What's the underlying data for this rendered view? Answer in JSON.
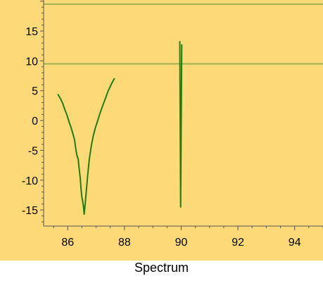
{
  "caption": "Spectrum",
  "colors": {
    "background": "#FDD977",
    "line": "#1E7F12",
    "reference": "#9FB24F",
    "axis": "#555555"
  },
  "chart_data": {
    "type": "line",
    "title": "",
    "xlabel": "",
    "ylabel": "",
    "xlim": [
      85.15,
      95.0
    ],
    "ylim": [
      -17.7,
      20.2
    ],
    "xticks": [
      86,
      88,
      90,
      92,
      94
    ],
    "yticks": [
      -15,
      -10,
      -5,
      0,
      5,
      10,
      15
    ],
    "grid": false,
    "reference_lines_y": [
      19.5,
      9.5
    ],
    "series": [
      {
        "points": [
          [
            85.65,
            4.4
          ],
          [
            85.75,
            3.6
          ],
          [
            85.82,
            2.9
          ],
          [
            85.9,
            1.8
          ],
          [
            85.98,
            0.8
          ],
          [
            86.05,
            -0.3
          ],
          [
            86.12,
            -1.2
          ],
          [
            86.18,
            -2.2
          ],
          [
            86.24,
            -3.2
          ],
          [
            86.28,
            -4.6
          ],
          [
            86.32,
            -5.8
          ],
          [
            86.37,
            -6.5
          ],
          [
            86.4,
            -8.0
          ],
          [
            86.44,
            -9.6
          ],
          [
            86.47,
            -11.5
          ],
          [
            86.5,
            -12.9
          ],
          [
            86.53,
            -13.6
          ],
          [
            86.56,
            -14.6
          ],
          [
            86.58,
            -15.7
          ],
          [
            86.62,
            -13.8
          ],
          [
            86.66,
            -11.5
          ],
          [
            86.7,
            -9.3
          ],
          [
            86.76,
            -6.5
          ],
          [
            86.83,
            -4.3
          ],
          [
            86.9,
            -2.6
          ],
          [
            86.97,
            -1.3
          ],
          [
            87.05,
            -0.1
          ],
          [
            87.13,
            1.1
          ],
          [
            87.22,
            2.3
          ],
          [
            87.32,
            3.6
          ],
          [
            87.42,
            4.9
          ],
          [
            87.55,
            6.2
          ],
          [
            87.65,
            7.1
          ]
        ]
      },
      {
        "points": [
          [
            89.95,
            13.3
          ],
          [
            89.98,
            -14.5
          ],
          [
            90.02,
            12.8
          ]
        ]
      }
    ]
  }
}
